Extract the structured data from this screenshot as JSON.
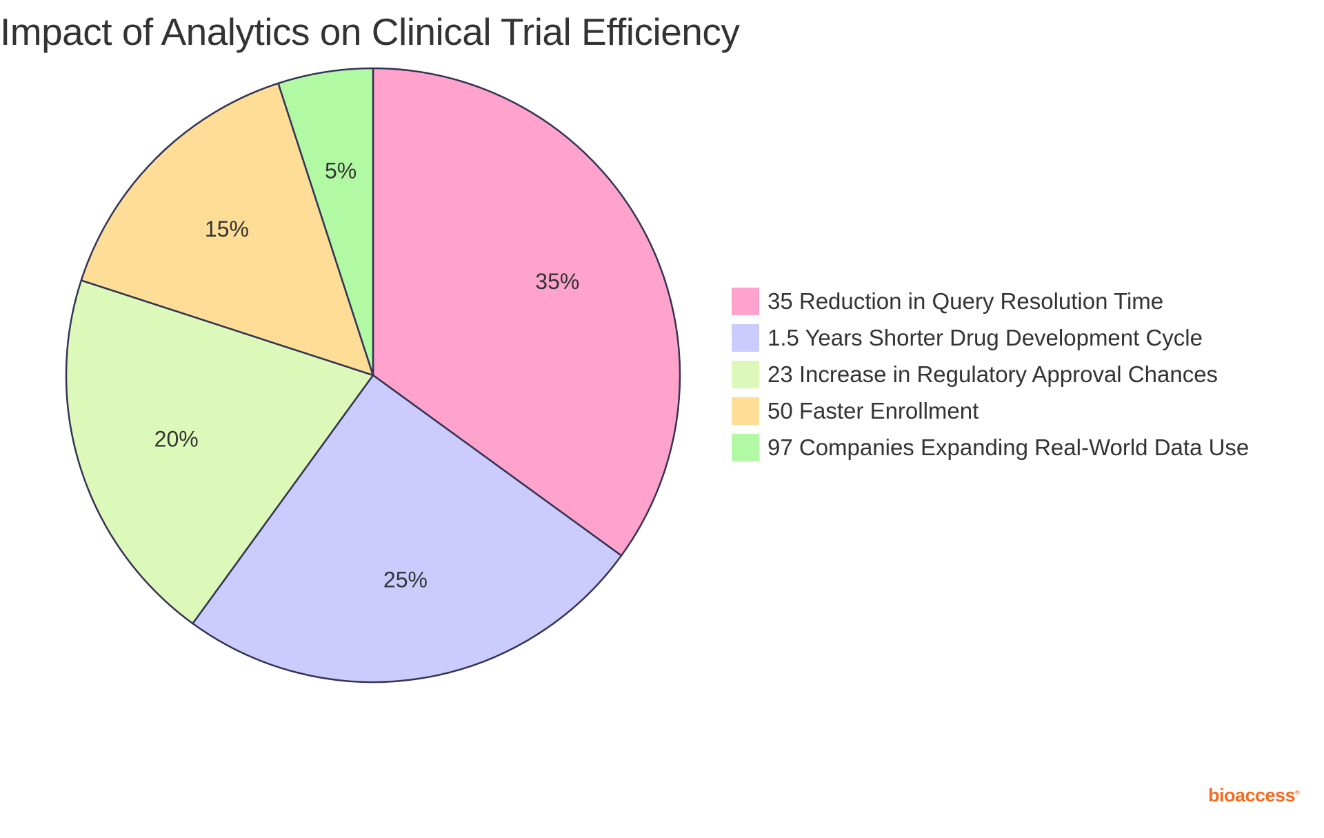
{
  "chart_data": {
    "type": "pie",
    "title": "Impact of Analytics on Clinical Trial Efficiency",
    "slices": [
      {
        "label": "35 Reduction in Query Resolution Time",
        "value": 35,
        "display": "35%",
        "color": "#FFA3CC"
      },
      {
        "label": "1.5 Years Shorter Drug Development Cycle",
        "value": 25,
        "display": "25%",
        "color": "#CBCBFD"
      },
      {
        "label": "23 Increase in Regulatory Approval Chances",
        "value": 20,
        "display": "20%",
        "color": "#DDF9B9"
      },
      {
        "label": "50 Faster Enrollment",
        "value": 15,
        "display": "15%",
        "color": "#FEDE97"
      },
      {
        "label": "97 Companies Expanding Real-World Data Use",
        "value": 5,
        "display": "5%",
        "color": "#B2F9A3"
      }
    ],
    "legend_position": "right",
    "stroke_color": "#333355"
  },
  "brand": {
    "name": "bioaccess",
    "mark": "®"
  }
}
